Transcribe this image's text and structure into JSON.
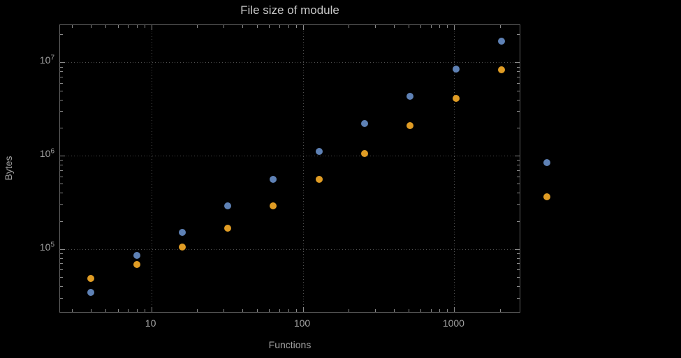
{
  "chart_data": {
    "type": "scatter",
    "title": "File size of module",
    "xlabel": "Functions",
    "ylabel": "Bytes",
    "x_scale": "log",
    "y_scale": "log",
    "xlim": [
      2.5,
      2760
    ],
    "ylim": [
      20400,
      25100000
    ],
    "grid": "major-dotted",
    "legend_position": "none",
    "x_major_ticks": [
      {
        "value": 10,
        "label": "10"
      },
      {
        "value": 100,
        "label": "100"
      },
      {
        "value": 1000,
        "label": "1000"
      }
    ],
    "y_major_ticks": [
      {
        "value": 100000,
        "base": "10",
        "exp": "5"
      },
      {
        "value": 1000000,
        "base": "10",
        "exp": "6"
      },
      {
        "value": 10000000,
        "base": "10",
        "exp": "7"
      }
    ],
    "x": [
      4,
      8,
      16,
      32,
      64,
      128,
      256,
      512,
      1024,
      2048,
      4096
    ],
    "series": [
      {
        "name": "series-blue",
        "color": "#5e81b5",
        "values": [
          34000,
          85000,
          150000,
          290000,
          560000,
          1120000,
          2200000,
          4300000,
          8500000,
          17000000,
          850000
        ]
      },
      {
        "name": "series-orange",
        "color": "#e09c24",
        "values": [
          48000,
          68000,
          105000,
          168000,
          290000,
          560000,
          1050000,
          2100000,
          4100000,
          8300000,
          360000
        ]
      }
    ],
    "colors": {
      "background": "#000000",
      "frame": "#626262",
      "grid": "#505050",
      "tick": "#8a8a8a",
      "text": "#a2a2a2",
      "title": "#c8c8c8"
    }
  }
}
